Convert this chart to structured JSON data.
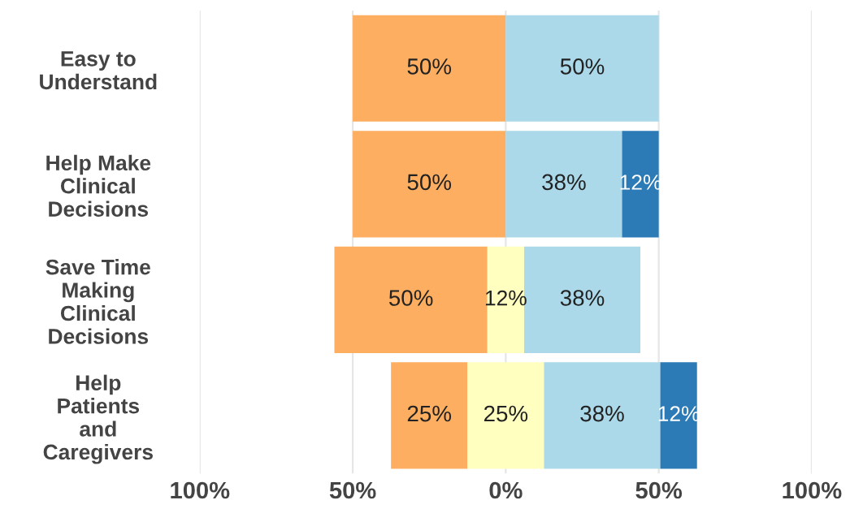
{
  "chart_data": {
    "type": "bar",
    "orientation": "horizontal",
    "categories": [
      "Easy to\nUnderstand",
      "Help Make\nClinical\nDecisions",
      "Save Time\nMaking\nClinical\nDecisions",
      "Help\nPatients\nand\nCaregivers"
    ],
    "series": [
      {
        "color": "#fdae61",
        "values": [
          50,
          50,
          50,
          25
        ],
        "base": [
          -50,
          -50,
          -56,
          -37.5
        ],
        "value_labels": [
          "50%",
          "50%",
          "50%",
          "25%"
        ]
      },
      {
        "color": "#ffffbf",
        "values": [
          null,
          null,
          12,
          25
        ],
        "base": [
          null,
          null,
          -6,
          -12.5
        ],
        "value_labels": [
          null,
          null,
          "12%",
          "25%"
        ]
      },
      {
        "color": "#abd9e9",
        "values": [
          50,
          38,
          38,
          38
        ],
        "base": [
          0,
          0,
          6,
          12.5
        ],
        "value_labels": [
          "50%",
          "38%",
          "38%",
          "38%"
        ]
      },
      {
        "color": "#2c7bb6",
        "values": [
          null,
          12,
          null,
          12
        ],
        "base": [
          null,
          38,
          null,
          50.5
        ],
        "value_labels": [
          null,
          "12%",
          null,
          "12%"
        ]
      }
    ],
    "xlim": [
      -100,
      100
    ],
    "xticks": [
      {
        "value": -100,
        "label": "100%"
      },
      {
        "value": -50,
        "label": "50%"
      },
      {
        "value": 0,
        "label": "0%"
      },
      {
        "value": 50,
        "label": "50%"
      },
      {
        "value": 100,
        "label": "100%"
      }
    ],
    "grid": "x",
    "legend": false
  }
}
